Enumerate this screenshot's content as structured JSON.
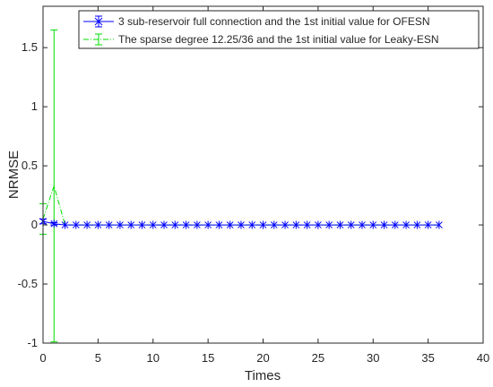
{
  "chart_data": {
    "type": "line",
    "title": "",
    "xlabel": "Times",
    "ylabel": "NRMSE",
    "xlim": [
      0,
      40
    ],
    "ylim": [
      -1,
      1.85
    ],
    "xticks": [
      0,
      5,
      10,
      15,
      20,
      25,
      30,
      35,
      40
    ],
    "yticks": [
      -1,
      -0.5,
      0,
      0.5,
      1,
      1.5
    ],
    "xtick_labels": [
      "0",
      "5",
      "10",
      "15",
      "20",
      "25",
      "30",
      "35",
      "40"
    ],
    "ytick_labels": [
      "-1",
      "-0.5",
      "0",
      "0.5",
      "1",
      "1.5"
    ],
    "grid": false,
    "legend_position": "top-right",
    "x": [
      0,
      1,
      2,
      3,
      4,
      5,
      6,
      7,
      8,
      9,
      10,
      11,
      12,
      13,
      14,
      15,
      16,
      17,
      18,
      19,
      20,
      21,
      22,
      23,
      24,
      25,
      26,
      27,
      28,
      29,
      30,
      31,
      32,
      33,
      34,
      35,
      36
    ],
    "series": [
      {
        "name": "3 sub-reservoir full connection and the 1st initial value for OFESN",
        "color": "#0000ff",
        "line_style": "solid",
        "marker": "asterisk",
        "values": [
          0.03,
          0.01,
          0,
          0,
          0,
          0,
          0,
          0,
          0,
          0,
          0,
          0,
          0,
          0,
          0,
          0,
          0,
          0,
          0,
          0,
          0,
          0,
          0,
          0,
          0,
          0,
          0,
          0,
          0,
          0,
          0,
          0,
          0,
          0,
          0,
          0,
          0
        ],
        "error": [
          0.02,
          0.01,
          0,
          0,
          0,
          0,
          0,
          0,
          0,
          0,
          0,
          0,
          0,
          0,
          0,
          0,
          0,
          0,
          0,
          0,
          0,
          0,
          0,
          0,
          0,
          0,
          0,
          0,
          0,
          0,
          0,
          0,
          0,
          0,
          0,
          0,
          0
        ]
      },
      {
        "name": "The sparse degree 12.25/36 and the 1st initial value for Leaky-ESN",
        "color": "#00dd00",
        "line_style": "dashdot",
        "marker": "none",
        "values": [
          0.05,
          0.33,
          0,
          0,
          0,
          0,
          0,
          0,
          0,
          0,
          0,
          0,
          0,
          0,
          0,
          0,
          0,
          0,
          0,
          0,
          0,
          0,
          0,
          0,
          0,
          0,
          0,
          0,
          0,
          0,
          0,
          0,
          0,
          0,
          0,
          0,
          0
        ],
        "error": [
          0.13,
          1.32,
          0,
          0,
          0,
          0,
          0,
          0,
          0,
          0,
          0,
          0,
          0,
          0,
          0,
          0,
          0,
          0,
          0,
          0,
          0,
          0,
          0,
          0,
          0,
          0,
          0,
          0,
          0,
          0,
          0,
          0,
          0,
          0,
          0,
          0,
          0
        ]
      }
    ]
  }
}
